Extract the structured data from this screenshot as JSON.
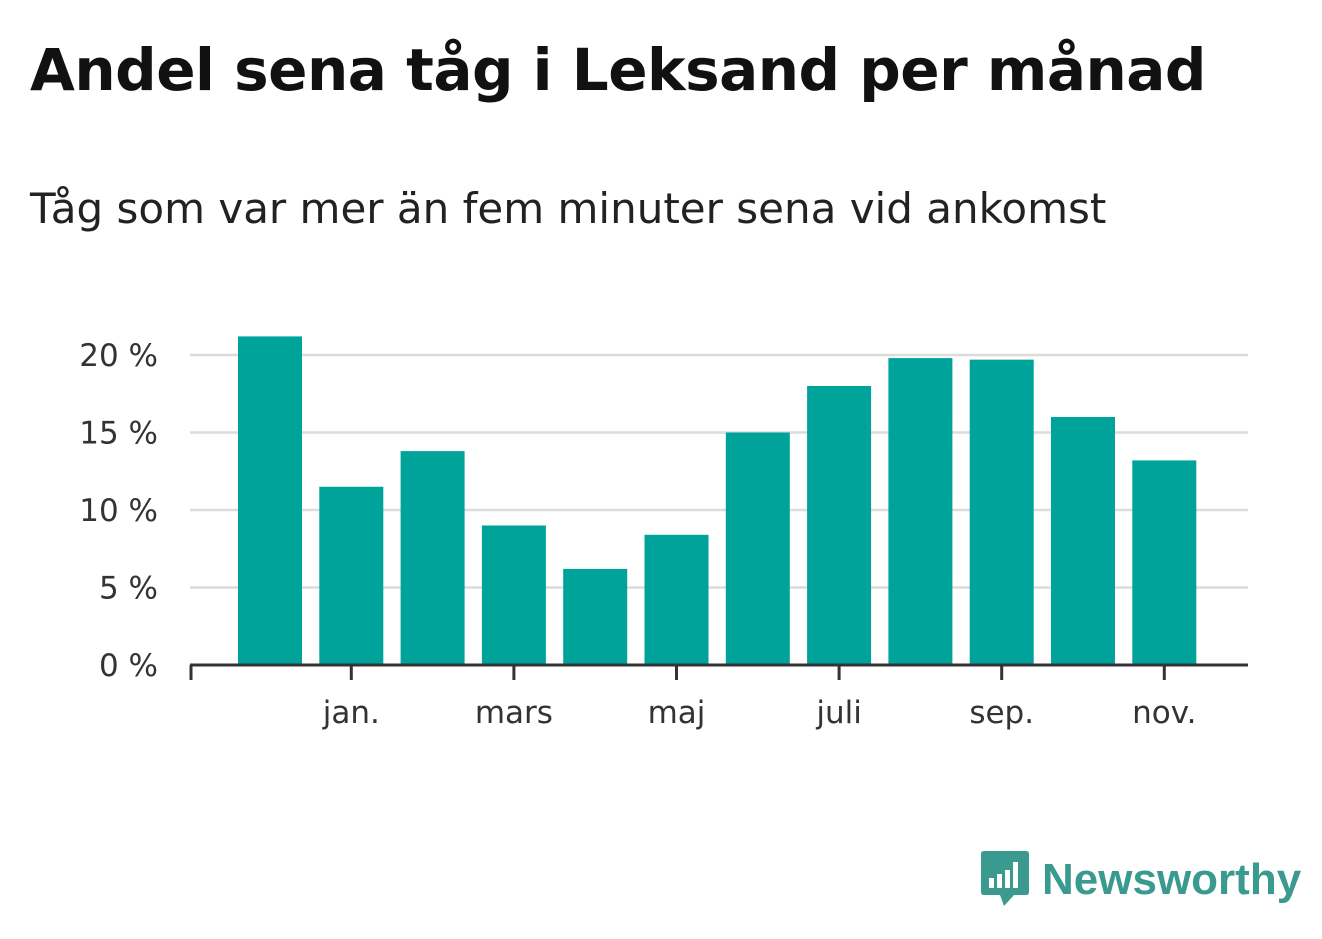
{
  "header": {
    "title": "Andel sena tåg i Leksand per månad",
    "subtitle": "Tåg som var mer än fem minuter sena vid ankomst"
  },
  "logo": {
    "text": "Newsworthy",
    "icon": "bar-chart-speech-bubble-icon",
    "color": "#3a9a90"
  },
  "colors": {
    "bar": "#00a39a",
    "grid": "#dcdcdc",
    "axis": "#333333"
  },
  "chart_data": {
    "type": "bar",
    "title": "Andel sena tåg i Leksand per månad",
    "subtitle": "Tåg som var mer än fem minuter sena vid ankomst",
    "xlabel": "",
    "ylabel": "",
    "ylim": [
      0,
      22
    ],
    "y_ticks": [
      0,
      5,
      10,
      15,
      20
    ],
    "y_tick_labels": [
      "0 %",
      "5 %",
      "10 %",
      "15 %",
      "20 %"
    ],
    "x_tick_labels": [
      {
        "label": "jan.",
        "bar_index": 1
      },
      {
        "label": "mars",
        "bar_index": 3
      },
      {
        "label": "maj",
        "bar_index": 5
      },
      {
        "label": "juli",
        "bar_index": 7
      },
      {
        "label": "sep.",
        "bar_index": 9
      },
      {
        "label": "nov.",
        "bar_index": 11
      }
    ],
    "unit": "%",
    "grid": true,
    "values": [
      21.2,
      11.5,
      13.8,
      9.0,
      6.2,
      8.4,
      15.0,
      18.0,
      19.8,
      19.7,
      16.0,
      13.2
    ]
  }
}
